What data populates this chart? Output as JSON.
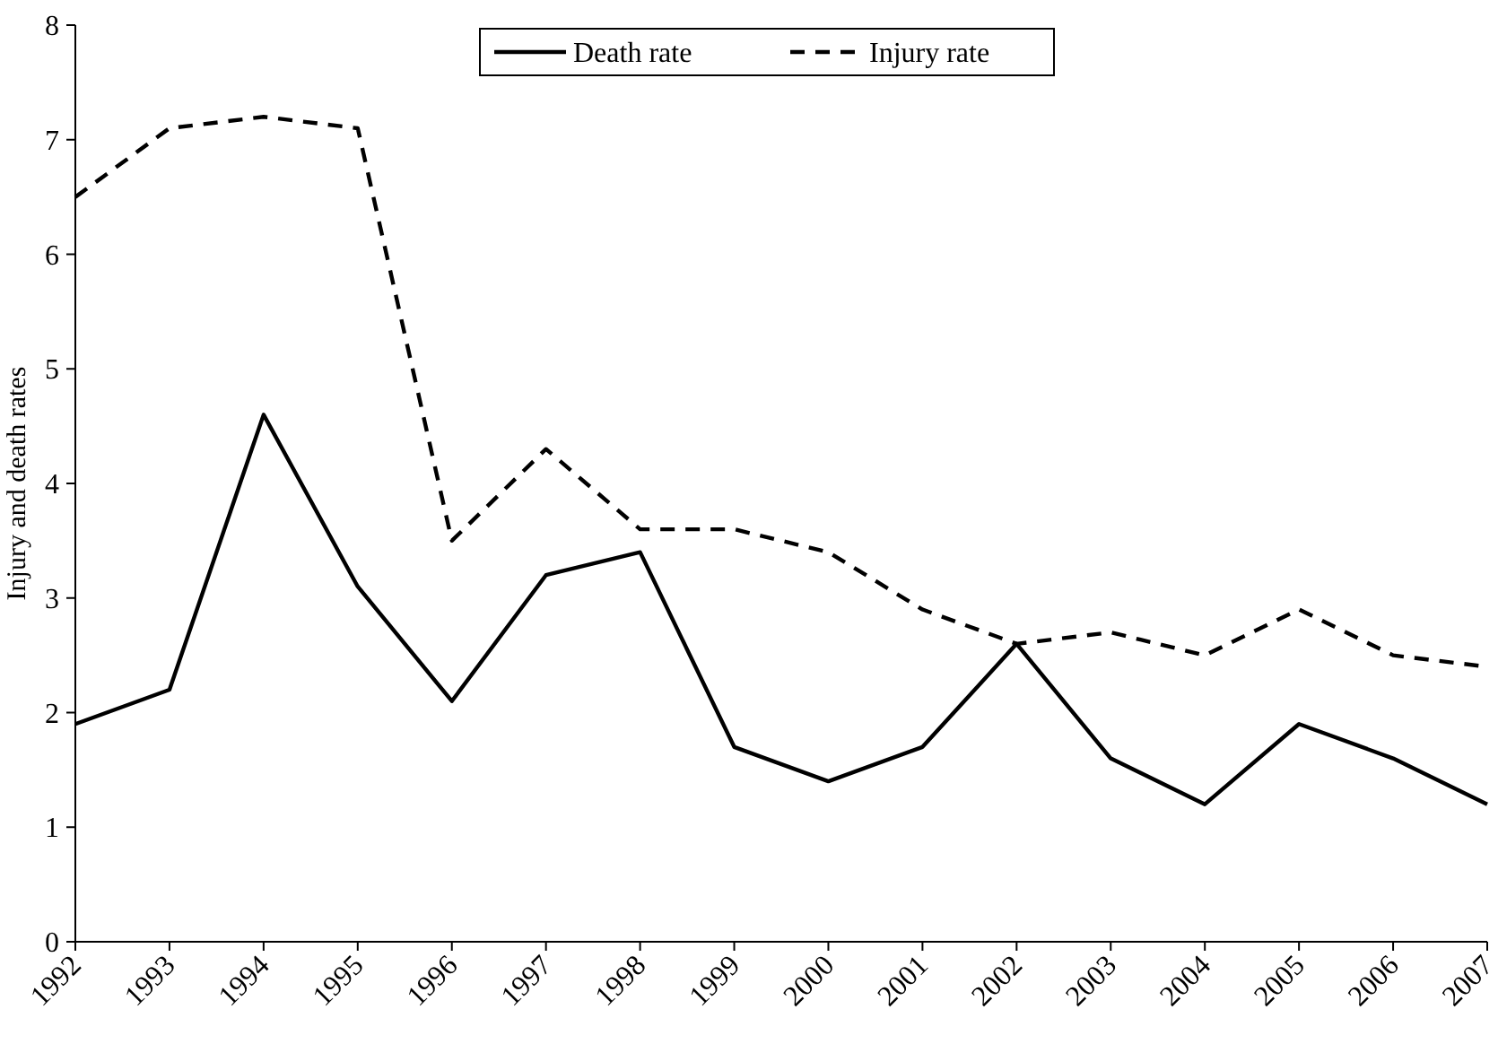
{
  "chart_data": {
    "type": "line",
    "ylabel": "Injury and death rates",
    "categories": [
      "1992",
      "1993",
      "1994",
      "1995",
      "1996",
      "1997",
      "1998",
      "1999",
      "2000",
      "2001",
      "2002",
      "2003",
      "2004",
      "2005",
      "2006",
      "2007"
    ],
    "series": [
      {
        "name": "Death rate",
        "color": "#000000",
        "line_style": "solid",
        "values": [
          1.9,
          2.2,
          4.6,
          3.1,
          2.1,
          3.2,
          3.4,
          1.7,
          1.4,
          1.7,
          2.6,
          1.6,
          1.2,
          1.9,
          1.6,
          1.2
        ]
      },
      {
        "name": "Injury rate",
        "color": "#000000",
        "line_style": "dashed",
        "values": [
          6.5,
          7.1,
          7.2,
          7.1,
          3.5,
          4.3,
          3.6,
          3.6,
          3.4,
          2.9,
          2.6,
          2.7,
          2.5,
          2.9,
          2.5,
          2.4
        ]
      }
    ],
    "ylim": [
      0,
      8
    ],
    "yticks": [
      0,
      1,
      2,
      3,
      4,
      5,
      6,
      7,
      8
    ],
    "grid": false,
    "legend": "top",
    "marker": "none"
  }
}
